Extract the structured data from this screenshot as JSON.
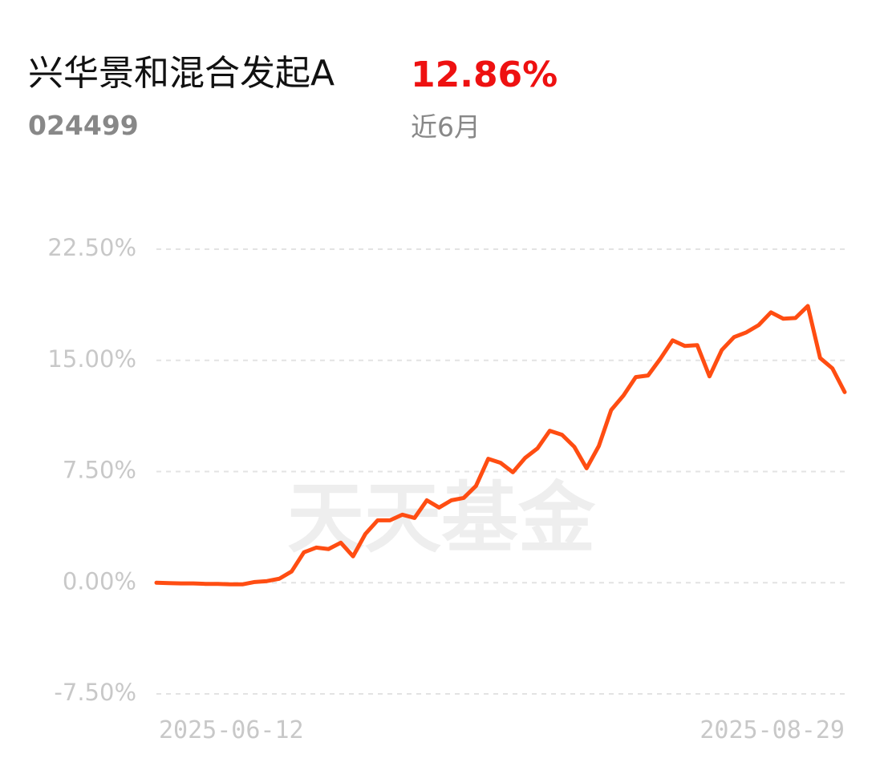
{
  "fund_name": "兴华景和混合发起A",
  "fund_code": "024499",
  "period_return": "12.86%",
  "period": "近6月",
  "watermark": "天天基金",
  "chart_data": {
    "type": "line",
    "categories": [
      "2025-06-12",
      null,
      null,
      null,
      null,
      null,
      null,
      null,
      null,
      null,
      null,
      null,
      null,
      null,
      null,
      null,
      null,
      null,
      null,
      null,
      null,
      null,
      null,
      null,
      null,
      null,
      null,
      null,
      null,
      null,
      null,
      null,
      null,
      null,
      null,
      null,
      null,
      null,
      null,
      null,
      null,
      null,
      null,
      null,
      null,
      null,
      null,
      null,
      null,
      null,
      null,
      null,
      null,
      null,
      null,
      null,
      "2025-08-29"
    ],
    "series": [
      {
        "name": "兴华景和混合发起A",
        "color": "#ff4d12",
        "values": [
          0.0,
          -0.03,
          -0.05,
          -0.05,
          -0.08,
          -0.08,
          -0.11,
          -0.11,
          0.05,
          0.11,
          0.27,
          0.76,
          2.05,
          2.37,
          2.27,
          2.7,
          1.78,
          3.29,
          4.21,
          4.21,
          4.59,
          4.37,
          5.56,
          5.07,
          5.56,
          5.72,
          6.53,
          8.36,
          8.09,
          7.45,
          8.42,
          9.06,
          10.25,
          9.98,
          9.17,
          7.72,
          9.23,
          11.65,
          12.63,
          13.87,
          13.98,
          15.11,
          16.35,
          15.97,
          16.03,
          13.92,
          15.7,
          16.57,
          16.89,
          17.38,
          18.24,
          17.81,
          17.86,
          18.67,
          15.16,
          14.46,
          12.86
        ]
      }
    ],
    "ylim": [
      -7.5,
      22.5
    ],
    "yticks": [
      {
        "value": -7.5,
        "label": "-7.50%"
      },
      {
        "value": 0,
        "label": "0.00%"
      },
      {
        "value": 7.5,
        "label": "7.50%"
      },
      {
        "value": 15,
        "label": "15.00%"
      },
      {
        "value": 22.5,
        "label": "22.50%"
      }
    ],
    "grid": true
  }
}
